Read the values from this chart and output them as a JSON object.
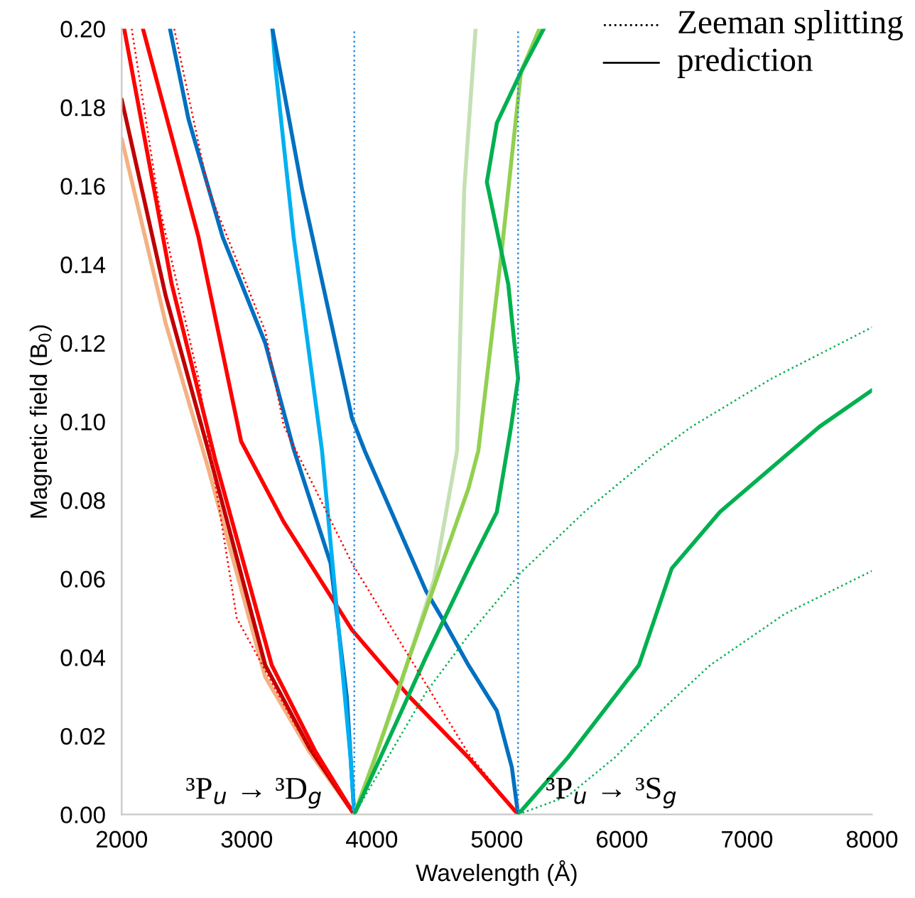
{
  "chart_data": {
    "type": "line",
    "xlabel": "Wavelength (Å)",
    "ylabel": "Magnetic field (B$_{0}$)",
    "xlim": [
      2000,
      8000
    ],
    "xticks": [
      2000,
      3000,
      4000,
      5000,
      6000,
      7000,
      8000
    ],
    "ylim": [
      0,
      0.2
    ],
    "yticks": [
      {
        "value": 0,
        "label": "0.00"
      },
      {
        "value": 0.02,
        "label": "0.02"
      },
      {
        "value": 0.04,
        "label": "0.04"
      },
      {
        "value": 0.06,
        "label": "0.06"
      },
      {
        "value": 0.08,
        "label": "0.08"
      },
      {
        "value": 0.1,
        "label": "0.10"
      },
      {
        "value": 0.12,
        "label": "0.12"
      },
      {
        "value": 0.14,
        "label": "0.14"
      },
      {
        "value": 0.16,
        "label": "0.16"
      },
      {
        "value": 0.18,
        "label": "0.18"
      },
      {
        "value": 0.2,
        "label": "0.20"
      }
    ],
    "grid": false,
    "annotations": [
      "Zeeman splitting",
      "prediction",
      {
        "text": "³P$_{u}$ → ³D$_{g}$",
        "x": 3860,
        "y": 0
      },
      {
        "text": "³P$_{u}$ → ³S$_{g}$",
        "x": 5170,
        "y": 0
      }
    ],
    "series": [
      {
        "color": "#2e8bdb",
        "line_style": "dotted",
        "x": [
          3860,
          3860
        ],
        "values": [
          0,
          0.2
        ]
      },
      {
        "color": "#2e8bdb",
        "line_style": "dotted",
        "x": [
          5170,
          5170
        ],
        "values": [
          0,
          0.2
        ]
      },
      {
        "color": "#ff0000",
        "line_style": "dotted",
        "x": [
          2420,
          2693,
          3148,
          3295,
          3841,
          4773,
          5170
        ],
        "values": [
          0.2,
          0.159,
          0.123,
          0.099,
          0.064,
          0.0155,
          0
        ]
      },
      {
        "color": "#ff0000",
        "line_style": "dotted",
        "x": [
          2080,
          2300,
          2614,
          2920,
          3400,
          3860
        ],
        "values": [
          0.2,
          0.155,
          0.111,
          0.05,
          0.022,
          0
        ]
      },
      {
        "color": "#00b050",
        "line_style": "dotted",
        "x": [
          3860,
          4432,
          4773,
          5190,
          5700,
          6250,
          6557,
          7200,
          8000
        ],
        "values": [
          0,
          0.031,
          0.0456,
          0.0615,
          0.077,
          0.0915,
          0.0987,
          0.111,
          0.124
        ]
      },
      {
        "color": "#00b050",
        "line_style": "dotted",
        "x": [
          5170,
          5568,
          5943,
          6300,
          6705,
          7300,
          8000
        ],
        "values": [
          0,
          0.0047,
          0.0145,
          0.026,
          0.038,
          0.051,
          0.062
        ]
      },
      {
        "color": "#f4b183",
        "line_style": "solid",
        "x": [
          2000,
          2352,
          2693,
          3148,
          3500,
          3860
        ],
        "values": [
          0.172,
          0.125,
          0.088,
          0.035,
          0.016,
          0
        ]
      },
      {
        "color": "#c00000",
        "line_style": "solid",
        "x": [
          2000,
          2352,
          2693,
          3148,
          3500,
          3860
        ],
        "values": [
          0.182,
          0.132,
          0.0926,
          0.038,
          0.017,
          0
        ]
      },
      {
        "color": "#ff0000",
        "line_style": "solid",
        "x": [
          2020,
          2400,
          2750,
          3200,
          3550,
          3860
        ],
        "values": [
          0.2,
          0.135,
          0.09,
          0.038,
          0.016,
          0
        ]
      },
      {
        "color": "#ff0000",
        "line_style": "solid",
        "x": [
          2170,
          2614,
          2955,
          3295,
          3841,
          4300,
          4773,
          5170
        ],
        "values": [
          0.2,
          0.147,
          0.095,
          0.0745,
          0.047,
          0.03,
          0.0145,
          0
        ]
      },
      {
        "color": "#0070c0",
        "line_style": "solid",
        "x": [
          2386,
          2534,
          2807,
          3148,
          3375,
          3670,
          3800,
          3860
        ],
        "values": [
          0.2,
          0.177,
          0.147,
          0.12,
          0.093,
          0.064,
          0.03,
          0
        ]
      },
      {
        "color": "#00b0f0",
        "line_style": "solid",
        "x": [
          3205,
          3230,
          3375,
          3602,
          3830,
          3860
        ],
        "values": [
          0.2,
          0.19,
          0.147,
          0.0926,
          0.0145,
          0
        ]
      },
      {
        "color": "#0070c0",
        "line_style": "solid",
        "x": [
          3205,
          3443,
          3841,
          3943,
          4432,
          4580,
          4773,
          5000,
          5120,
          5170
        ],
        "values": [
          0.2,
          0.159,
          0.101,
          0.0926,
          0.057,
          0.049,
          0.038,
          0.0264,
          0.012,
          0
        ]
      },
      {
        "color": "#c5e0b4",
        "line_style": "solid",
        "x": [
          3860,
          4200,
          4500,
          4682,
          4739,
          4830
        ],
        "values": [
          0,
          0.03,
          0.06,
          0.0926,
          0.159,
          0.2
        ]
      },
      {
        "color": "#92d050",
        "line_style": "solid",
        "x": [
          3860,
          4000,
          4300,
          4773,
          4852,
          5034,
          5193,
          5341
        ],
        "values": [
          0,
          0.012,
          0.04,
          0.083,
          0.0926,
          0.142,
          0.189,
          0.2
        ]
      },
      {
        "color": "#00b050",
        "line_style": "solid",
        "x": [
          3860,
          4239,
          4432,
          4773,
          5000,
          5114,
          5170,
          5091,
          4920,
          5000,
          5193,
          5375
        ],
        "values": [
          0,
          0.0264,
          0.04,
          0.0626,
          0.077,
          0.0987,
          0.111,
          0.135,
          0.161,
          0.176,
          0.189,
          0.2
        ]
      },
      {
        "color": "#00b050",
        "line_style": "solid",
        "x": [
          5170,
          5568,
          6136,
          6398,
          6784,
          7580,
          8000
        ],
        "values": [
          0,
          0.0145,
          0.038,
          0.0626,
          0.077,
          0.0987,
          0.108
        ]
      }
    ]
  }
}
